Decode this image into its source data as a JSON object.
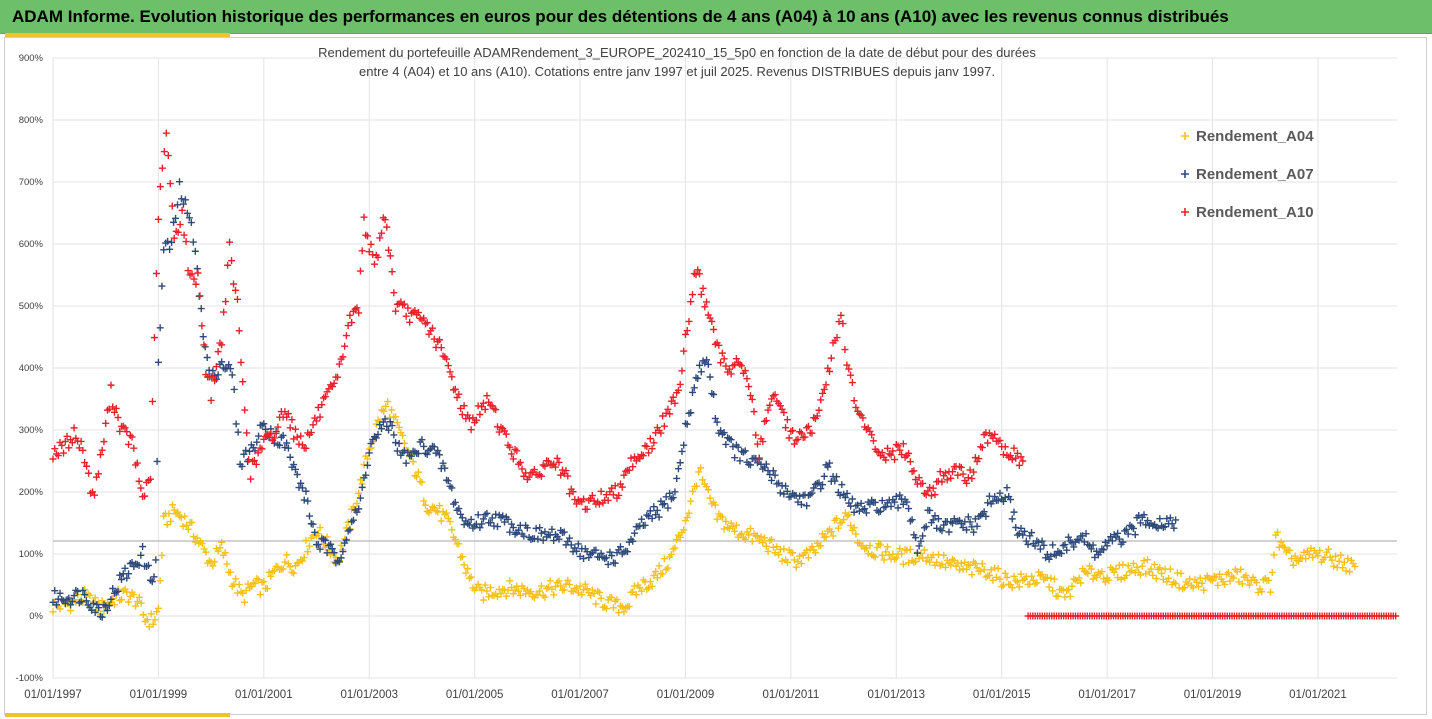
{
  "header": {
    "title": "ADAM Informe. Evolution historique des performances en euros pour des détentions de 4 ans (A04) à 10 ans (A10) avec les revenus connus distribués"
  },
  "colors": {
    "header_bg": "#6dbf6a",
    "accent": "#f2c12e",
    "A04": "#f5c118",
    "A07": "#2e4a7a",
    "A10": "#e8202a"
  },
  "chart_data": {
    "type": "scatter",
    "marker": "plus",
    "title_lines": [
      "Rendement du portefeuille ADAMRendement_3_EUROPE_202410_15_5p0  en fonction de la date de début pour des durées",
      "entre 4 (A04) et 10 ans (A10). Cotations  entre janv 1997 et juil 2025. Revenus DISTRIBUES depuis janv 1997."
    ],
    "x_ticks": [
      "01/01/1997",
      "01/01/1999",
      "01/01/2001",
      "01/01/2003",
      "01/01/2005",
      "01/01/2007",
      "01/01/2009",
      "01/01/2011",
      "01/01/2013",
      "01/01/2015",
      "01/01/2017",
      "01/01/2019",
      "01/01/2021"
    ],
    "xlim": [
      "01/01/1997",
      "01/07/2022"
    ],
    "y_ticks": [
      "-100%",
      "0%",
      "100%",
      "200%",
      "300%",
      "400%",
      "500%",
      "600%",
      "700%",
      "800%",
      "900%"
    ],
    "ylim": [
      -100,
      900
    ],
    "y_unit": "%",
    "reference_line_y": 121,
    "legend_position": "top-right",
    "series": [
      {
        "name": "Rendement_A04",
        "color": "#f5c118",
        "points": [
          [
            1997.0,
            15
          ],
          [
            1997.3,
            20
          ],
          [
            1997.6,
            30
          ],
          [
            1997.9,
            12
          ],
          [
            1998.2,
            30
          ],
          [
            1998.4,
            35
          ],
          [
            1998.6,
            25
          ],
          [
            1998.75,
            -5
          ],
          [
            1998.9,
            -8
          ],
          [
            1999.0,
            10
          ],
          [
            1999.1,
            150
          ],
          [
            1999.3,
            170
          ],
          [
            1999.5,
            155
          ],
          [
            1999.7,
            130
          ],
          [
            1999.9,
            100
          ],
          [
            2000.0,
            85
          ],
          [
            2000.2,
            110
          ],
          [
            2000.4,
            60
          ],
          [
            2000.6,
            30
          ],
          [
            2000.8,
            50
          ],
          [
            2001.0,
            45
          ],
          [
            2001.2,
            70
          ],
          [
            2001.4,
            90
          ],
          [
            2001.6,
            80
          ],
          [
            2001.8,
            110
          ],
          [
            2002.0,
            140
          ],
          [
            2002.2,
            115
          ],
          [
            2002.4,
            90
          ],
          [
            2002.6,
            140
          ],
          [
            2002.8,
            200
          ],
          [
            2003.0,
            270
          ],
          [
            2003.2,
            320
          ],
          [
            2003.35,
            340
          ],
          [
            2003.5,
            310
          ],
          [
            2003.7,
            270
          ],
          [
            2003.9,
            230
          ],
          [
            2004.1,
            180
          ],
          [
            2004.3,
            170
          ],
          [
            2004.5,
            150
          ],
          [
            2004.7,
            110
          ],
          [
            2004.9,
            60
          ],
          [
            2005.1,
            35
          ],
          [
            2005.3,
            40
          ],
          [
            2005.6,
            45
          ],
          [
            2005.9,
            42
          ],
          [
            2006.2,
            40
          ],
          [
            2006.5,
            45
          ],
          [
            2006.8,
            48
          ],
          [
            2007.1,
            40
          ],
          [
            2007.4,
            25
          ],
          [
            2007.7,
            15
          ],
          [
            2007.9,
            18
          ],
          [
            2008.1,
            45
          ],
          [
            2008.4,
            60
          ],
          [
            2008.7,
            90
          ],
          [
            2008.9,
            130
          ],
          [
            2009.1,
            180
          ],
          [
            2009.25,
            235
          ],
          [
            2009.4,
            200
          ],
          [
            2009.6,
            160
          ],
          [
            2009.9,
            140
          ],
          [
            2010.2,
            130
          ],
          [
            2010.5,
            120
          ],
          [
            2010.8,
            100
          ],
          [
            2011.1,
            90
          ],
          [
            2011.4,
            100
          ],
          [
            2011.7,
            130
          ],
          [
            2011.9,
            150
          ],
          [
            2012.1,
            160
          ],
          [
            2012.3,
            120
          ],
          [
            2012.6,
            105
          ],
          [
            2012.9,
            100
          ],
          [
            2013.2,
            95
          ],
          [
            2013.5,
            100
          ],
          [
            2013.8,
            90
          ],
          [
            2014.1,
            80
          ],
          [
            2014.4,
            75
          ],
          [
            2014.7,
            75
          ],
          [
            2015.0,
            60
          ],
          [
            2015.3,
            55
          ],
          [
            2015.6,
            60
          ],
          [
            2015.9,
            55
          ],
          [
            2016.2,
            30
          ],
          [
            2016.5,
            65
          ],
          [
            2016.8,
            70
          ],
          [
            2017.1,
            65
          ],
          [
            2017.4,
            75
          ],
          [
            2017.7,
            80
          ],
          [
            2018.0,
            70
          ],
          [
            2018.3,
            60
          ],
          [
            2018.6,
            50
          ],
          [
            2018.9,
            55
          ],
          [
            2019.2,
            60
          ],
          [
            2019.5,
            65
          ],
          [
            2019.8,
            50
          ],
          [
            2020.1,
            50
          ],
          [
            2020.2,
            130
          ],
          [
            2020.4,
            95
          ],
          [
            2020.7,
            90
          ],
          [
            2020.9,
            100
          ],
          [
            2021.2,
            95
          ],
          [
            2021.5,
            85
          ],
          [
            2021.7,
            80
          ]
        ]
      },
      {
        "name": "Rendement_A07",
        "color": "#2e4a7a",
        "points": [
          [
            1997.0,
            28
          ],
          [
            1997.3,
            30
          ],
          [
            1997.6,
            35
          ],
          [
            1997.9,
            5
          ],
          [
            1998.1,
            30
          ],
          [
            1998.3,
            60
          ],
          [
            1998.5,
            80
          ],
          [
            1998.7,
            100
          ],
          [
            1998.85,
            60
          ],
          [
            1998.95,
            80
          ],
          [
            1999.0,
            410
          ],
          [
            1999.1,
            590
          ],
          [
            1999.25,
            600
          ],
          [
            1999.4,
            690
          ],
          [
            1999.55,
            650
          ],
          [
            1999.7,
            600
          ],
          [
            1999.85,
            450
          ],
          [
            2000.0,
            380
          ],
          [
            2000.2,
            410
          ],
          [
            2000.4,
            390
          ],
          [
            2000.55,
            250
          ],
          [
            2000.8,
            270
          ],
          [
            2001.0,
            310
          ],
          [
            2001.2,
            290
          ],
          [
            2001.4,
            280
          ],
          [
            2001.6,
            230
          ],
          [
            2001.8,
            190
          ],
          [
            2002.0,
            120
          ],
          [
            2002.2,
            110
          ],
          [
            2002.4,
            90
          ],
          [
            2002.6,
            140
          ],
          [
            2002.8,
            170
          ],
          [
            2003.0,
            270
          ],
          [
            2003.2,
            300
          ],
          [
            2003.4,
            310
          ],
          [
            2003.6,
            260
          ],
          [
            2003.8,
            255
          ],
          [
            2004.0,
            275
          ],
          [
            2004.2,
            270
          ],
          [
            2004.4,
            240
          ],
          [
            2004.6,
            190
          ],
          [
            2004.8,
            150
          ],
          [
            2005.0,
            150
          ],
          [
            2005.3,
            160
          ],
          [
            2005.6,
            150
          ],
          [
            2005.9,
            140
          ],
          [
            2006.2,
            130
          ],
          [
            2006.5,
            130
          ],
          [
            2006.8,
            120
          ],
          [
            2007.1,
            100
          ],
          [
            2007.4,
            95
          ],
          [
            2007.7,
            95
          ],
          [
            2007.9,
            110
          ],
          [
            2008.2,
            150
          ],
          [
            2008.5,
            170
          ],
          [
            2008.8,
            200
          ],
          [
            2009.0,
            300
          ],
          [
            2009.2,
            380
          ],
          [
            2009.4,
            420
          ],
          [
            2009.6,
            310
          ],
          [
            2009.9,
            270
          ],
          [
            2010.2,
            250
          ],
          [
            2010.5,
            240
          ],
          [
            2010.8,
            210
          ],
          [
            2011.1,
            190
          ],
          [
            2011.4,
            190
          ],
          [
            2011.7,
            240
          ],
          [
            2011.9,
            210
          ],
          [
            2012.1,
            180
          ],
          [
            2012.4,
            170
          ],
          [
            2012.7,
            180
          ],
          [
            2012.9,
            175
          ],
          [
            2013.2,
            190
          ],
          [
            2013.4,
            110
          ],
          [
            2013.6,
            160
          ],
          [
            2013.9,
            140
          ],
          [
            2014.2,
            150
          ],
          [
            2014.5,
            145
          ],
          [
            2014.8,
            185
          ],
          [
            2015.1,
            195
          ],
          [
            2015.3,
            140
          ],
          [
            2015.6,
            120
          ],
          [
            2015.9,
            100
          ],
          [
            2016.2,
            110
          ],
          [
            2016.5,
            130
          ],
          [
            2016.8,
            100
          ],
          [
            2017.1,
            120
          ],
          [
            2017.4,
            130
          ],
          [
            2017.7,
            160
          ],
          [
            2018.0,
            150
          ],
          [
            2018.3,
            155
          ]
        ]
      },
      {
        "name": "Rendement_A10",
        "color": "#e8202a",
        "points": [
          [
            1997.0,
            265
          ],
          [
            1997.2,
            270
          ],
          [
            1997.4,
            295
          ],
          [
            1997.6,
            260
          ],
          [
            1997.75,
            190
          ],
          [
            1997.9,
            250
          ],
          [
            1998.1,
            360
          ],
          [
            1998.3,
            300
          ],
          [
            1998.5,
            280
          ],
          [
            1998.7,
            190
          ],
          [
            1998.85,
            230
          ],
          [
            1999.0,
            650
          ],
          [
            1999.15,
            780
          ],
          [
            1999.3,
            610
          ],
          [
            1999.45,
            650
          ],
          [
            1999.6,
            540
          ],
          [
            1999.75,
            550
          ],
          [
            1999.9,
            400
          ],
          [
            2000.0,
            360
          ],
          [
            2000.2,
            450
          ],
          [
            2000.35,
            590
          ],
          [
            2000.5,
            500
          ],
          [
            2000.6,
            370
          ],
          [
            2000.75,
            230
          ],
          [
            2001.0,
            280
          ],
          [
            2001.2,
            290
          ],
          [
            2001.4,
            340
          ],
          [
            2001.6,
            290
          ],
          [
            2001.8,
            280
          ],
          [
            2002.0,
            320
          ],
          [
            2002.2,
            350
          ],
          [
            2002.4,
            380
          ],
          [
            2002.6,
            470
          ],
          [
            2002.8,
            500
          ],
          [
            2002.9,
            640
          ],
          [
            2003.1,
            560
          ],
          [
            2003.3,
            650
          ],
          [
            2003.5,
            500
          ],
          [
            2003.7,
            490
          ],
          [
            2003.9,
            480
          ],
          [
            2004.1,
            470
          ],
          [
            2004.3,
            440
          ],
          [
            2004.5,
            400
          ],
          [
            2004.7,
            350
          ],
          [
            2004.9,
            310
          ],
          [
            2005.1,
            330
          ],
          [
            2005.3,
            350
          ],
          [
            2005.5,
            300
          ],
          [
            2005.7,
            270
          ],
          [
            2005.9,
            240
          ],
          [
            2006.1,
            220
          ],
          [
            2006.3,
            240
          ],
          [
            2006.5,
            250
          ],
          [
            2006.7,
            230
          ],
          [
            2006.9,
            180
          ],
          [
            2007.1,
            180
          ],
          [
            2007.4,
            190
          ],
          [
            2007.7,
            200
          ],
          [
            2007.9,
            240
          ],
          [
            2008.1,
            260
          ],
          [
            2008.3,
            270
          ],
          [
            2008.5,
            300
          ],
          [
            2008.7,
            330
          ],
          [
            2008.9,
            380
          ],
          [
            2009.0,
            450
          ],
          [
            2009.2,
            560
          ],
          [
            2009.4,
            500
          ],
          [
            2009.6,
            430
          ],
          [
            2009.8,
            400
          ],
          [
            2010.0,
            410
          ],
          [
            2010.2,
            380
          ],
          [
            2010.4,
            260
          ],
          [
            2010.6,
            350
          ],
          [
            2010.8,
            340
          ],
          [
            2011.0,
            290
          ],
          [
            2011.2,
            290
          ],
          [
            2011.4,
            300
          ],
          [
            2011.6,
            350
          ],
          [
            2011.8,
            430
          ],
          [
            2011.95,
            490
          ],
          [
            2012.1,
            390
          ],
          [
            2012.3,
            320
          ],
          [
            2012.5,
            290
          ],
          [
            2012.7,
            260
          ],
          [
            2012.9,
            260
          ],
          [
            2013.1,
            270
          ],
          [
            2013.3,
            240
          ],
          [
            2013.5,
            210
          ],
          [
            2013.7,
            200
          ],
          [
            2013.9,
            230
          ],
          [
            2014.1,
            230
          ],
          [
            2014.4,
            225
          ],
          [
            2014.6,
            270
          ],
          [
            2014.8,
            300
          ],
          [
            2015.0,
            270
          ],
          [
            2015.2,
            260
          ],
          [
            2015.4,
            250
          ]
        ]
      },
      {
        "name": "",
        "color": "#e8202a",
        "baseline_segment": [
          [
            2015.5,
            0
          ],
          [
            2022.5,
            0
          ]
        ]
      }
    ]
  },
  "legend": [
    {
      "label": "Rendement_A04",
      "color": "#f5c118"
    },
    {
      "label": "Rendement_A07",
      "color": "#2e4a7a"
    },
    {
      "label": "Rendement_A10",
      "color": "#e8202a"
    }
  ]
}
